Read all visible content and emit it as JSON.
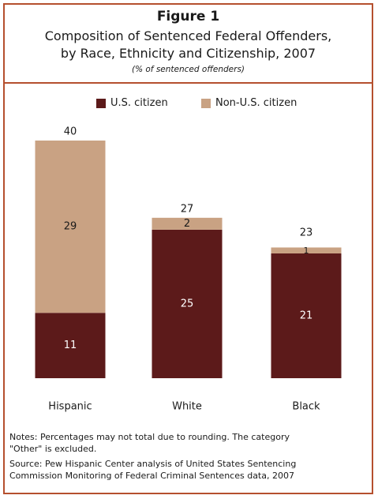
{
  "header": {
    "figure_label": "Figure 1",
    "title_line1": "Composition of Sentenced Federal Offenders,",
    "title_line2": "by Race, Ethnicity and Citizenship, 2007",
    "subtitle": "(% of sentenced offenders)"
  },
  "colors": {
    "us_citizen": "#5c1a1a",
    "non_us_citizen": "#c9a283",
    "border": "#b5502e"
  },
  "chart_data": {
    "type": "bar",
    "stacked": true,
    "categories": [
      "Hispanic",
      "White",
      "Black"
    ],
    "series": [
      {
        "name": "U.S. citizen",
        "values": [
          11,
          25,
          21
        ]
      },
      {
        "name": "Non-U.S. citizen",
        "values": [
          29,
          2,
          1
        ]
      }
    ],
    "totals": [
      40,
      27,
      23
    ],
    "ylim": [
      0,
      40
    ],
    "legend": "top",
    "grid": false
  },
  "notes": {
    "note_line1": "Notes: Percentages may not total due to rounding.  The category",
    "note_line2": "\"Other\" is excluded.",
    "source_line1": "Source: Pew Hispanic Center analysis of United States Sentencing",
    "source_line2": "Commission Monitoring of Federal Criminal Sentences data, 2007"
  }
}
